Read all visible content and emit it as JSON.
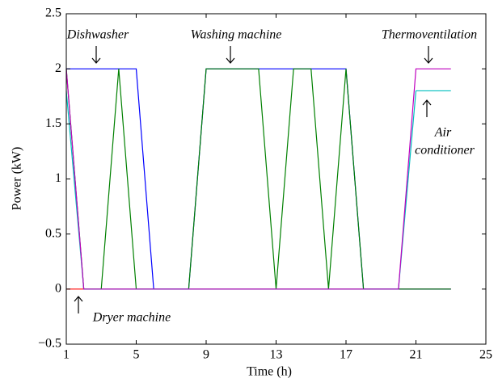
{
  "chart_data": {
    "type": "line",
    "x": [
      1,
      2,
      3,
      4,
      5,
      6,
      7,
      8,
      9,
      10,
      11,
      12,
      13,
      14,
      15,
      16,
      17,
      18,
      19,
      20,
      21,
      22,
      23
    ],
    "series": [
      {
        "color": "#ff0000",
        "values": [
          0,
          0,
          0,
          0,
          0,
          0,
          0,
          0,
          0,
          0,
          0,
          0,
          0,
          0,
          0,
          0,
          0,
          0,
          0,
          0,
          0,
          0,
          0
        ]
      },
      {
        "color": "#0000ff",
        "values": [
          2,
          2,
          2,
          2,
          2,
          0,
          0,
          0,
          2,
          2,
          2,
          2,
          2,
          2,
          2,
          2,
          2,
          0,
          0,
          0,
          0,
          0,
          0
        ]
      },
      {
        "color": "#008000",
        "values": [
          2,
          0,
          0,
          2,
          0,
          0,
          0,
          0,
          2,
          2,
          2,
          2,
          0,
          2,
          2,
          0,
          2,
          0,
          0,
          0,
          0,
          0,
          0
        ]
      },
      {
        "color": "#00bfbf",
        "values": [
          1.8,
          0,
          0,
          0,
          0,
          0,
          0,
          0,
          0,
          0,
          0,
          0,
          0,
          0,
          0,
          0,
          0,
          0,
          0,
          0,
          1.8,
          1.8,
          1.8
        ]
      },
      {
        "color": "#bf00bf",
        "values": [
          2,
          0,
          0,
          0,
          0,
          0,
          0,
          0,
          0,
          0,
          0,
          0,
          0,
          0,
          0,
          0,
          0,
          0,
          0,
          0,
          2,
          2,
          2
        ]
      }
    ],
    "xlabel": "Time (h)",
    "ylabel": "Power (kW)",
    "xlim": [
      1,
      25
    ],
    "xticks": [
      1,
      5,
      9,
      13,
      17,
      21,
      25
    ],
    "ylim": [
      -0.5,
      2.5
    ],
    "yticks": [
      {
        "value": -0.5,
        "label": "−0.5"
      },
      0,
      0.5,
      1,
      1.5,
      2,
      2.5
    ],
    "annotations": [
      "Dishwasher",
      "Washing machine",
      "Thermoventilation",
      "Air",
      "conditioner",
      "Dryer machine"
    ]
  }
}
